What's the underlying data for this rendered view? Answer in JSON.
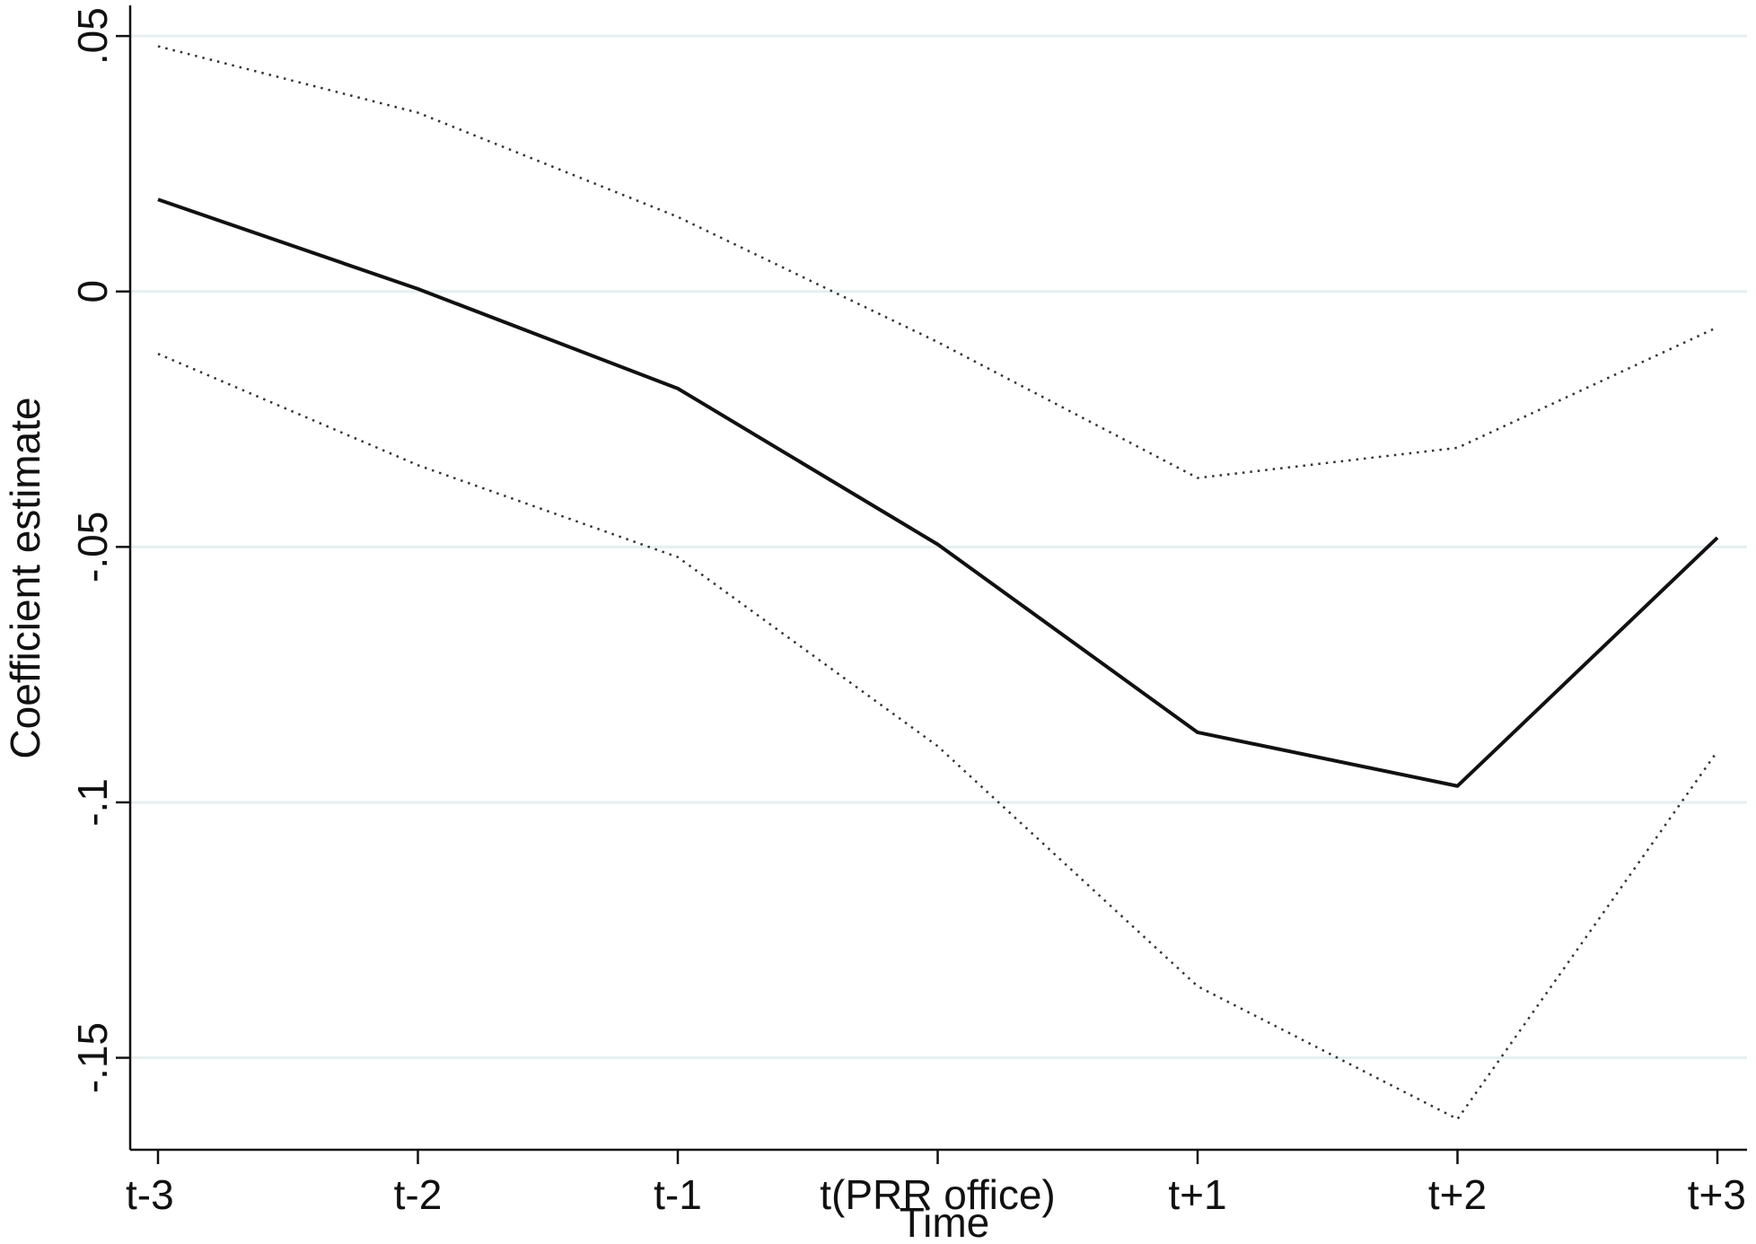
{
  "chart_data": {
    "type": "line",
    "x_label": "Time",
    "y_label": "Coefficient estimate",
    "categories": [
      "t-3",
      "t-2",
      "t-1",
      "t(PRR office)",
      "t+1",
      "t+2",
      "t+3"
    ],
    "series": [
      {
        "color": "#111111",
        "style": "solid",
        "values": [
          0.018,
          0.0005,
          -0.019,
          -0.0495,
          -0.0863,
          -0.0968,
          -0.0482
        ]
      },
      {
        "color": "#333333",
        "style": "dotted",
        "values": [
          0.048,
          0.035,
          0.0146,
          -0.0099,
          -0.0365,
          -0.0306,
          -0.007
        ]
      },
      {
        "color": "#333333",
        "style": "dotted",
        "values": [
          -0.0122,
          -0.034,
          -0.052,
          -0.089,
          -0.136,
          -0.162,
          -0.09
        ]
      }
    ],
    "ylim": [
      -0.168,
      0.056
    ],
    "yticks": [
      {
        "value": 0.05,
        "label": ".05"
      },
      0,
      {
        "value": -0.05,
        "label": "-.05"
      },
      {
        "value": -0.1,
        "label": "-.1"
      },
      {
        "value": -0.15,
        "label": "-.15"
      }
    ],
    "grid": true,
    "grid_color": "#e6eff0"
  }
}
